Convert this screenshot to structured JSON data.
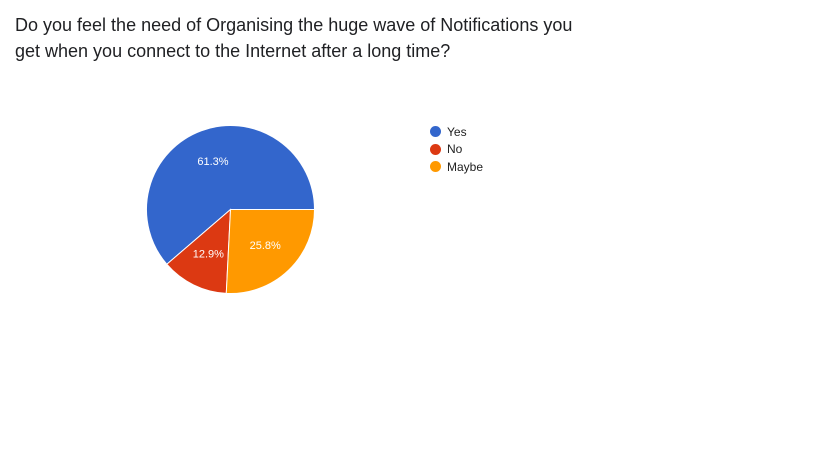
{
  "chart_data": {
    "type": "pie",
    "title_lines": [
      "Do you feel the need of Organising the huge wave of Notifications you",
      "get when you connect to the Internet after a long time?"
    ],
    "slices": [
      {
        "label": "Yes",
        "value": 61.3,
        "value_label": "61.3%",
        "color": "#3366cc"
      },
      {
        "label": "No",
        "value": 12.9,
        "value_label": "12.9%",
        "color": "#dc3912"
      },
      {
        "label": "Maybe",
        "value": 25.8,
        "value_label": "25.8%",
        "color": "#ff9900"
      }
    ],
    "legend_position": "right"
  }
}
